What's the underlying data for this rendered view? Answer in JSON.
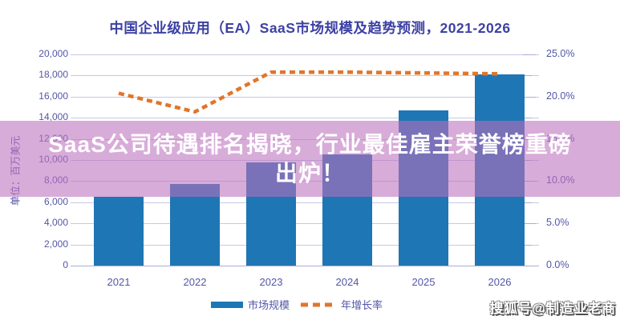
{
  "title": "中国企业级应用（EA）SaaS市场规模及趋势预测，2021-2026",
  "overlay_banner": {
    "line1": "SaaS公司待遇排名揭晓，行业最佳雇主荣誉榜重磅",
    "line2": "出炉！"
  },
  "watermark": "搜狐号@制造业老商",
  "chart_data": {
    "type": "bar",
    "title": "中国企业级应用（EA）SaaS市场规模及趋势预测，2021-2026",
    "categories": [
      "2021",
      "2022",
      "2023",
      "2024",
      "2025",
      "2026"
    ],
    "series": [
      {
        "name": "市场规模",
        "type": "bar",
        "axis": "left",
        "values": [
          6500,
          7700,
          9800,
          10500,
          14700,
          18100
        ]
      },
      {
        "name": "年增长率",
        "type": "line",
        "style": "dashed",
        "axis": "right",
        "values": [
          20.4,
          18.2,
          22.9,
          22.9,
          22.8,
          22.7
        ]
      }
    ],
    "left_axis": {
      "label": "单位：百万美元",
      "min": 0,
      "max": 20000,
      "tick_step": 2000,
      "tick_labels": [
        "0",
        "2,000",
        "4,000",
        "6,000",
        "8,000",
        "10,000",
        "12,000",
        "14,000",
        "16,000",
        "18,000",
        "20,000"
      ]
    },
    "right_axis": {
      "min": 0,
      "max": 25,
      "tick_step": 5,
      "minor_tick_step": 2.5,
      "tick_labels": [
        "0.0%",
        "5.0%",
        "10.0%",
        "15.0%",
        "20.0%",
        "25.0%"
      ]
    },
    "grid": true,
    "legend_position": "bottom"
  },
  "colors": {
    "bar": "#1e76b4",
    "line": "#e0762b",
    "title_text": "#3c41a4",
    "axis_text": "#5356a6",
    "gridline": "#c7c9e6",
    "axis_line": "#a9acd4",
    "banner_bg": "rgba(188,112,190,0.58)",
    "banner_text": "#ffffff",
    "background": "#ffffff"
  }
}
